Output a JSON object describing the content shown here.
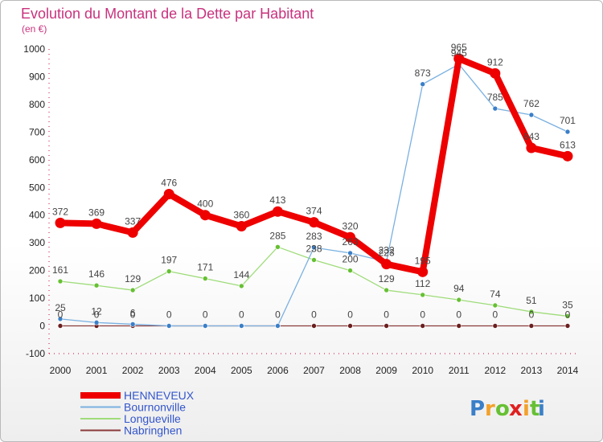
{
  "chart_data": {
    "type": "line",
    "title": "Evolution du Montant de la Dette par Habitant",
    "subtitle": "(en €)",
    "x": [
      "2000",
      "2001",
      "2002",
      "2003",
      "2004",
      "2005",
      "2006",
      "2007",
      "2008",
      "2009",
      "2010",
      "2011",
      "2012",
      "2013",
      "2014"
    ],
    "ylim": [
      -100,
      1000
    ],
    "yticks": [
      -100,
      0,
      100,
      200,
      300,
      400,
      500,
      600,
      700,
      800,
      900,
      1000
    ],
    "grid": false,
    "legend_placement": "bottom-left",
    "series": [
      {
        "name": "HENNEVEUX",
        "color": "#ee0000",
        "emphasis": true,
        "values": [
          372,
          369,
          337,
          476,
          400,
          360,
          413,
          374,
          320,
          223,
          195,
          965,
          912,
          643,
          613
        ],
        "labels": [
          "372",
          "369",
          "337",
          "476",
          "400",
          "360",
          "413",
          "374",
          "320",
          "223",
          "195",
          "965",
          "912",
          "643",
          "613"
        ]
      },
      {
        "name": "Bournonville",
        "color": "#7ab0e0",
        "marker": "#3a7fc8",
        "values": [
          25,
          12,
          6,
          0,
          0,
          0,
          0,
          283,
          263,
          232,
          873,
          945,
          785,
          762,
          701
        ],
        "labels": [
          "25",
          "12",
          "6",
          "",
          "",
          "",
          "",
          "283",
          "263",
          "232",
          "873",
          "945",
          "785",
          "762",
          "701"
        ]
      },
      {
        "name": "Longueville",
        "color": "#9fdc7a",
        "marker": "#66c033",
        "values": [
          161,
          146,
          129,
          197,
          171,
          144,
          285,
          238,
          200,
          129,
          112,
          94,
          74,
          51,
          35
        ],
        "labels": [
          "161",
          "146",
          "129",
          "197",
          "171",
          "144",
          "285",
          "238",
          "200",
          "129",
          "112",
          "94",
          "74",
          "51",
          "35"
        ]
      },
      {
        "name": "Nabringhen",
        "color": "#8b3a3a",
        "marker": "#6b1f1f",
        "values": [
          0,
          0,
          0,
          0,
          0,
          0,
          0,
          0,
          0,
          0,
          0,
          0,
          0,
          0,
          0
        ],
        "labels": [
          "0",
          "0",
          "0",
          "0",
          "0",
          "0",
          "0",
          "0",
          "0",
          "0",
          "0",
          "0",
          "0",
          "0",
          "0"
        ]
      }
    ]
  },
  "logo": {
    "text": "Proxiti",
    "letters": [
      "P",
      "r",
      "o",
      "x",
      "i",
      "t",
      "i"
    ],
    "colors": [
      "#3a7fc8",
      "#f2a12a",
      "#66c033",
      "#e02020",
      "#f2a12a",
      "#66c033",
      "#3a7fc8"
    ]
  }
}
